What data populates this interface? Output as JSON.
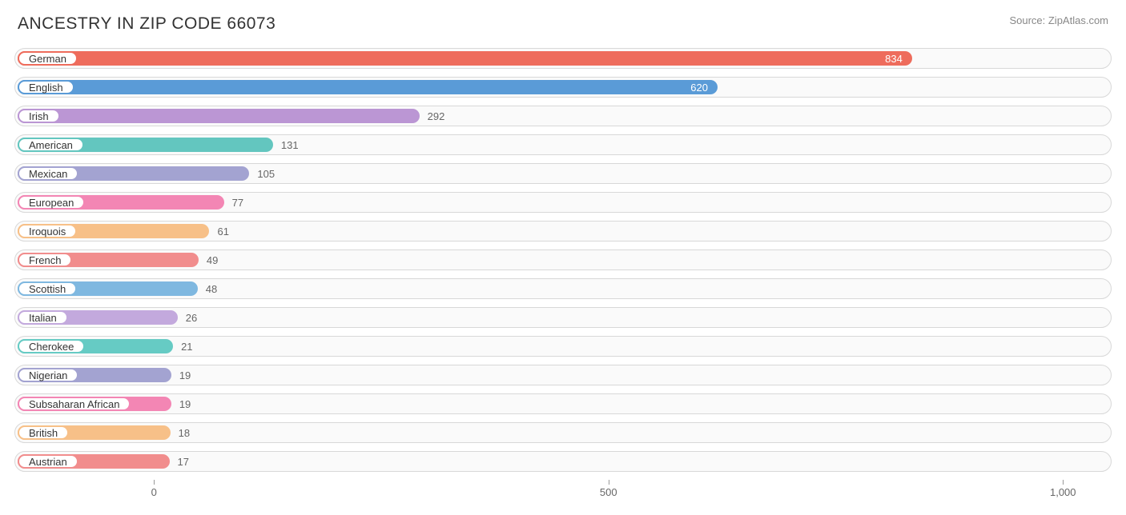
{
  "title": "ANCESTRY IN ZIP CODE 66073",
  "source": "Source: ZipAtlas.com",
  "chart": {
    "type": "bar-horizontal",
    "x_min": -150,
    "x_max": 1050,
    "ticks": [
      {
        "value": 0,
        "label": "0"
      },
      {
        "value": 500,
        "label": "500"
      },
      {
        "value": 1000,
        "label": "1,000"
      }
    ],
    "inside_label_threshold": 400,
    "track_bg": "#fafafa",
    "track_border": "#d8d8d8",
    "pill_bg": "#ffffff",
    "text_color": "#333333",
    "value_outside_color": "#666666",
    "value_inside_color": "#ffffff",
    "bars": [
      {
        "label": "German",
        "value": 834,
        "color": "#ee6c5c"
      },
      {
        "label": "English",
        "value": 620,
        "color": "#5a9bd7"
      },
      {
        "label": "Irish",
        "value": 292,
        "color": "#bb96d4"
      },
      {
        "label": "American",
        "value": 131,
        "color": "#63c6bf"
      },
      {
        "label": "Mexican",
        "value": 105,
        "color": "#a3a3d1"
      },
      {
        "label": "European",
        "value": 77,
        "color": "#f386b4"
      },
      {
        "label": "Iroquois",
        "value": 61,
        "color": "#f7c088"
      },
      {
        "label": "French",
        "value": 49,
        "color": "#f18d8d"
      },
      {
        "label": "Scottish",
        "value": 48,
        "color": "#7fb8e0"
      },
      {
        "label": "Italian",
        "value": 26,
        "color": "#c3a9dd"
      },
      {
        "label": "Cherokee",
        "value": 21,
        "color": "#66cbc4"
      },
      {
        "label": "Nigerian",
        "value": 19,
        "color": "#a3a3d1"
      },
      {
        "label": "Subsaharan African",
        "value": 19,
        "color": "#f386b4"
      },
      {
        "label": "British",
        "value": 18,
        "color": "#f7c088"
      },
      {
        "label": "Austrian",
        "value": 17,
        "color": "#f18d8d"
      }
    ]
  }
}
